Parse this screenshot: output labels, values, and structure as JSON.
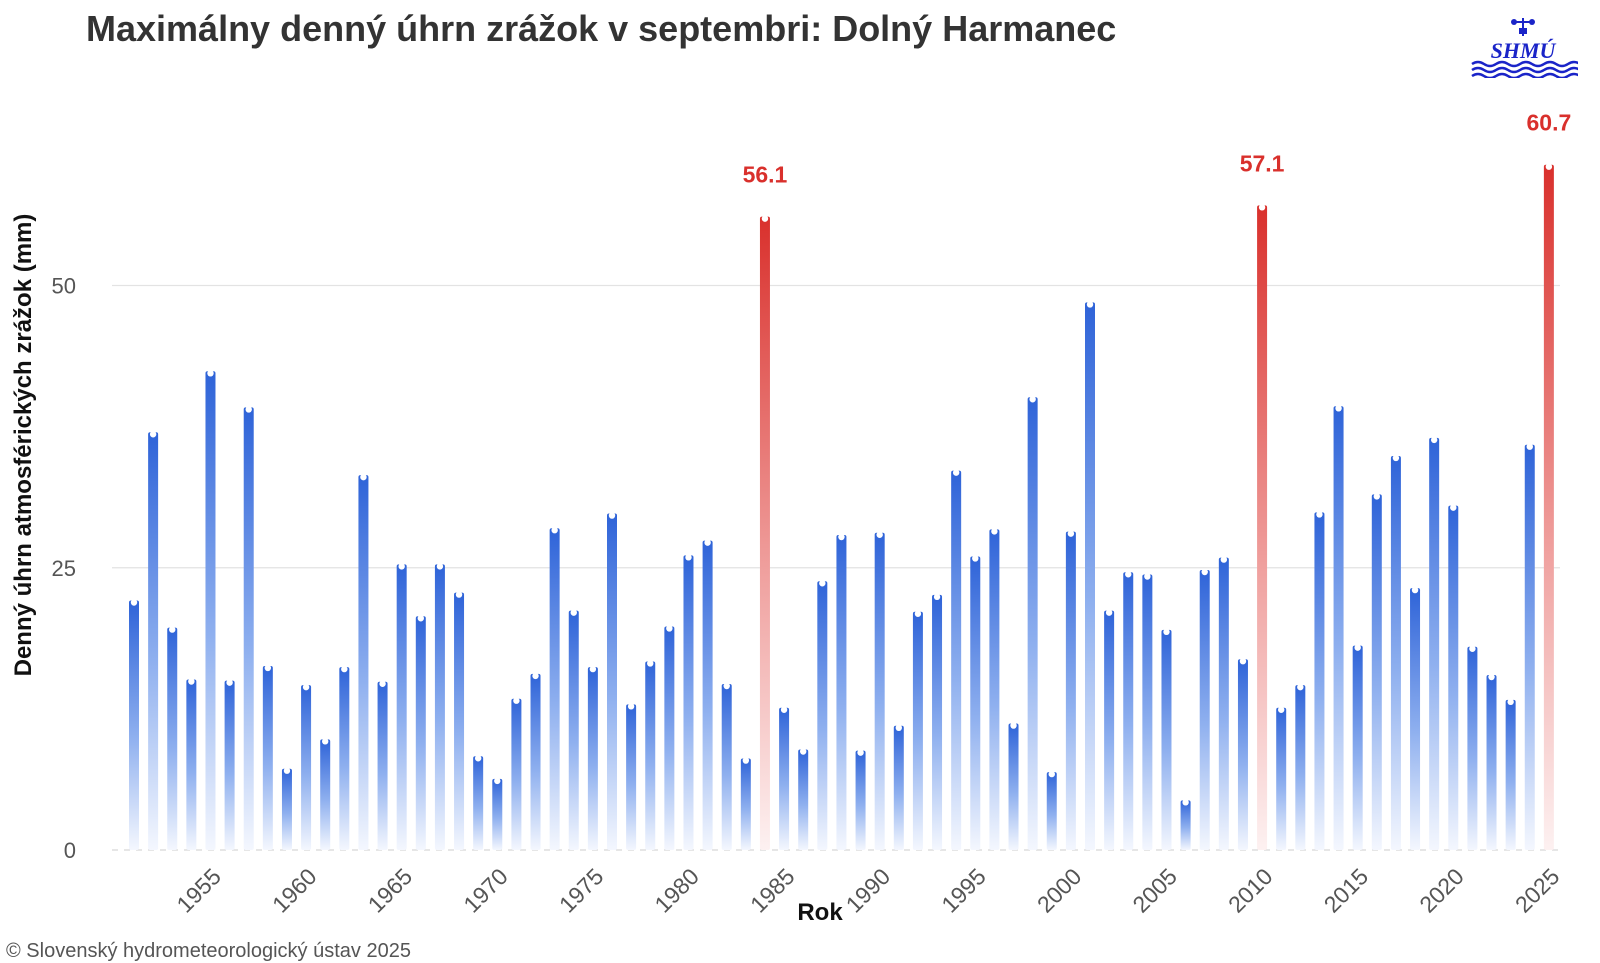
{
  "header": {
    "title": "Maximálny denný úhrn zrážok v septembri: Dolný Harmanec",
    "logo_text": "SHMÚ"
  },
  "footer": {
    "copyright": "© Slovenský hydrometeorologický ústav 2025"
  },
  "colors": {
    "normal_bar": "#3a6fdc",
    "record_bar": "#d9302c",
    "record_label": "#d9302c",
    "grid": "#e3e3e3",
    "logo": "#1a24c8"
  },
  "chart_data": {
    "type": "bar",
    "title": "Maximálny denný úhrn zrážok v septembri: Dolný Harmanec",
    "xlabel": "Rok",
    "ylabel": "Denný úhrn atmosférických zrážok (mm)",
    "ylim": [
      0,
      63
    ],
    "yticks": [
      0,
      25,
      50
    ],
    "xticks": [
      1955,
      1960,
      1965,
      1970,
      1975,
      1980,
      1985,
      1990,
      1995,
      2000,
      2005,
      2010,
      2015,
      2020,
      2025
    ],
    "grid": true,
    "x": [
      1951,
      1952,
      1953,
      1954,
      1955,
      1956,
      1957,
      1958,
      1959,
      1960,
      1961,
      1962,
      1963,
      1964,
      1965,
      1966,
      1967,
      1968,
      1969,
      1970,
      1971,
      1972,
      1973,
      1974,
      1975,
      1976,
      1977,
      1978,
      1979,
      1980,
      1981,
      1982,
      1983,
      1984,
      1985,
      1986,
      1987,
      1988,
      1989,
      1990,
      1991,
      1992,
      1993,
      1994,
      1995,
      1996,
      1997,
      1998,
      1999,
      2000,
      2001,
      2002,
      2003,
      2004,
      2005,
      2006,
      2007,
      2008,
      2009,
      2010,
      2011,
      2012,
      2013,
      2014,
      2015,
      2016,
      2017,
      2018,
      2019,
      2020,
      2021,
      2022,
      2023,
      2024,
      2025
    ],
    "values": [
      22.1,
      37.0,
      19.7,
      15.1,
      42.4,
      15.0,
      39.2,
      16.3,
      7.2,
      14.6,
      9.8,
      16.2,
      33.2,
      14.9,
      25.3,
      20.7,
      25.3,
      22.8,
      8.3,
      6.3,
      13.4,
      15.6,
      28.5,
      21.2,
      16.2,
      29.8,
      12.9,
      16.7,
      19.8,
      26.1,
      27.4,
      14.7,
      8.1,
      56.1,
      12.6,
      8.9,
      23.8,
      27.9,
      8.8,
      28.1,
      11.0,
      21.1,
      22.6,
      33.6,
      26.0,
      28.4,
      11.2,
      40.1,
      6.9,
      28.2,
      48.5,
      21.2,
      24.6,
      24.4,
      19.5,
      4.4,
      24.8,
      25.9,
      16.9,
      57.1,
      12.6,
      14.6,
      29.9,
      39.3,
      18.1,
      31.5,
      34.9,
      23.2,
      36.5,
      30.5,
      18.0,
      15.5,
      13.3,
      35.9,
      60.7
    ],
    "records": [
      {
        "x": 1984,
        "value": 56.1,
        "label": "56.1"
      },
      {
        "x": 2010,
        "value": 57.1,
        "label": "57.1"
      },
      {
        "x": 2025,
        "value": 60.7,
        "label": "60.7"
      }
    ]
  }
}
